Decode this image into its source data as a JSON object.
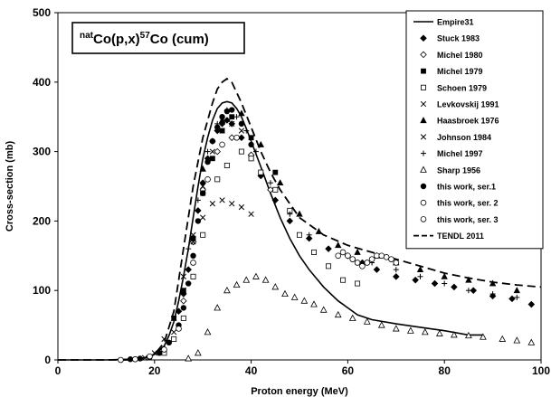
{
  "chart_data": {
    "type": "scatter",
    "title_parts": {
      "pre_sup": "nat",
      "base": "Co(p,x)",
      "mid_sup": "57",
      "post": "Co (cum)"
    },
    "xlabel": "Proton energy (MeV)",
    "ylabel": "Cross-section (mb)",
    "xlim": [
      0,
      100
    ],
    "ylim": [
      0,
      500
    ],
    "x_ticks": [
      0,
      20,
      40,
      60,
      80,
      100
    ],
    "y_ticks": [
      0,
      100,
      200,
      300,
      400,
      500
    ],
    "grid": false,
    "legend_position": "right",
    "series": [
      {
        "name": "Empire31",
        "kind": "line",
        "dash": "solid",
        "color": "#000000",
        "x": [
          0,
          10,
          15,
          18,
          20,
          22,
          23,
          24,
          25,
          26,
          27,
          28,
          29,
          30,
          31,
          32,
          33,
          34,
          35,
          36,
          37,
          38,
          39,
          40,
          42,
          44,
          46,
          48,
          50,
          52,
          55,
          58,
          60,
          62,
          65,
          70,
          75,
          80,
          85,
          88
        ],
        "y": [
          0,
          0,
          1,
          3,
          8,
          20,
          35,
          55,
          85,
          120,
          160,
          205,
          250,
          290,
          320,
          345,
          362,
          370,
          372,
          370,
          362,
          350,
          333,
          315,
          278,
          240,
          205,
          175,
          150,
          130,
          105,
          85,
          75,
          65,
          58,
          52,
          47,
          42,
          36,
          36
        ]
      },
      {
        "name": "Stuck 1983",
        "kind": "marker",
        "marker": "diamond",
        "color": "#000000",
        "x": [
          25,
          26,
          27,
          28,
          29,
          30,
          31,
          32,
          33,
          34,
          35,
          36,
          38,
          40,
          42,
          45,
          48,
          52,
          56,
          60,
          63,
          66,
          70,
          74,
          78,
          82,
          86,
          90,
          94,
          98
        ],
        "y": [
          70,
          95,
          130,
          170,
          215,
          255,
          290,
          315,
          330,
          340,
          345,
          340,
          320,
          295,
          265,
          230,
          200,
          175,
          160,
          150,
          140,
          130,
          120,
          115,
          110,
          105,
          100,
          92,
          88,
          80
        ]
      },
      {
        "name": "Michel 1980",
        "kind": "marker",
        "marker": "diamond-open",
        "color": "#000000",
        "x": [
          26,
          28,
          30,
          33,
          36,
          40,
          44
        ],
        "y": [
          85,
          170,
          245,
          300,
          320,
          295,
          245
        ]
      },
      {
        "name": "Michel 1979",
        "kind": "marker",
        "marker": "square",
        "color": "#000000",
        "x": [
          24,
          26,
          28,
          30,
          32,
          34,
          36,
          40,
          45
        ],
        "y": [
          60,
          100,
          175,
          240,
          290,
          330,
          350,
          320,
          270
        ]
      },
      {
        "name": "Schoen 1979",
        "kind": "marker",
        "marker": "square-open",
        "color": "#000000",
        "x": [
          22,
          24,
          26,
          28,
          30,
          33,
          35,
          38,
          40,
          42,
          45,
          48,
          50,
          53,
          56,
          59,
          62
        ],
        "y": [
          10,
          30,
          60,
          120,
          180,
          260,
          280,
          300,
          290,
          270,
          245,
          215,
          180,
          155,
          135,
          115,
          110
        ]
      },
      {
        "name": "Levkovskij 1991",
        "kind": "marker",
        "marker": "x",
        "color": "#000000",
        "x": [
          18,
          20,
          22,
          24,
          26,
          28,
          30,
          32,
          34,
          36,
          38
        ],
        "y": [
          3,
          10,
          30,
          60,
          120,
          180,
          250,
          300,
          330,
          340,
          330
        ]
      },
      {
        "name": "Haasbroek 1976",
        "kind": "marker",
        "marker": "triangle",
        "color": "#000000",
        "x": [
          30,
          34,
          38,
          42,
          46,
          50,
          54,
          58,
          62,
          66,
          70,
          75,
          80,
          85,
          90,
          95
        ],
        "y": [
          275,
          345,
          355,
          310,
          255,
          210,
          185,
          165,
          155,
          150,
          140,
          130,
          120,
          115,
          110,
          100
        ]
      },
      {
        "name": "Johnson 1984",
        "kind": "marker",
        "marker": "x",
        "color": "#000000",
        "x": [
          24,
          26,
          28,
          30,
          32,
          34,
          36,
          38,
          40
        ],
        "y": [
          40,
          100,
          170,
          205,
          225,
          230,
          225,
          220,
          210
        ]
      },
      {
        "name": "Michel 1997",
        "kind": "marker",
        "marker": "plus",
        "color": "#000000",
        "x": [
          27,
          29,
          31,
          33,
          35,
          37,
          39,
          41,
          44,
          48,
          52,
          56,
          60,
          65,
          70,
          75,
          80,
          85,
          90,
          95
        ],
        "y": [
          160,
          230,
          300,
          340,
          360,
          350,
          330,
          300,
          255,
          210,
          180,
          160,
          150,
          140,
          130,
          120,
          110,
          100,
          95,
          90
        ]
      },
      {
        "name": "Sharp 1956",
        "kind": "marker",
        "marker": "triangle-open",
        "color": "#000000",
        "x": [
          27,
          29,
          31,
          33,
          35,
          37,
          39,
          41,
          43,
          45,
          47,
          49,
          51,
          53,
          55,
          58,
          61,
          64,
          67,
          70,
          73,
          76,
          79,
          82,
          85,
          88,
          92,
          95,
          98
        ],
        "y": [
          2,
          10,
          40,
          75,
          100,
          108,
          115,
          120,
          115,
          105,
          95,
          90,
          85,
          80,
          72,
          65,
          60,
          55,
          50,
          45,
          42,
          40,
          38,
          36,
          35,
          33,
          30,
          28,
          25
        ]
      },
      {
        "name": "this work, ser.1",
        "kind": "marker",
        "marker": "circle",
        "color": "#000000",
        "x": [
          15,
          17,
          19,
          21,
          23,
          25,
          26,
          27,
          28,
          29,
          30,
          31,
          32,
          33,
          34,
          35,
          36,
          38,
          40
        ],
        "y": [
          1,
          2,
          4,
          10,
          25,
          50,
          75,
          110,
          150,
          200,
          240,
          285,
          315,
          335,
          350,
          358,
          360,
          340,
          310
        ]
      },
      {
        "name": "this work, ser. 2",
        "kind": "marker",
        "marker": "circle-open",
        "color": "#000000",
        "x": [
          13,
          16,
          19,
          22,
          25,
          28,
          31,
          34,
          37
        ],
        "y": [
          0,
          1,
          5,
          15,
          45,
          140,
          260,
          310,
          320
        ]
      },
      {
        "name": "this work, ser. 3",
        "kind": "marker",
        "marker": "circle-open",
        "color": "#000000",
        "x": [
          58,
          59,
          60,
          61,
          62,
          63,
          64,
          65,
          66,
          67,
          68,
          69,
          70
        ],
        "y": [
          150,
          155,
          150,
          145,
          140,
          135,
          140,
          145,
          150,
          150,
          148,
          145,
          140
        ]
      },
      {
        "name": "TENDL 2011",
        "kind": "line",
        "dash": "dashed",
        "color": "#000000",
        "x": [
          0,
          10,
          15,
          18,
          20,
          22,
          24,
          26,
          28,
          30,
          32,
          33,
          34,
          35,
          36,
          37,
          38,
          40,
          42,
          44,
          46,
          48,
          50,
          55,
          60,
          65,
          70,
          75,
          80,
          85,
          90,
          95,
          100
        ],
        "y": [
          0,
          0,
          0,
          2,
          8,
          25,
          70,
          160,
          250,
          320,
          370,
          390,
          400,
          405,
          400,
          385,
          370,
          335,
          300,
          270,
          245,
          225,
          205,
          180,
          165,
          155,
          145,
          135,
          125,
          118,
          112,
          108,
          105
        ]
      }
    ]
  }
}
